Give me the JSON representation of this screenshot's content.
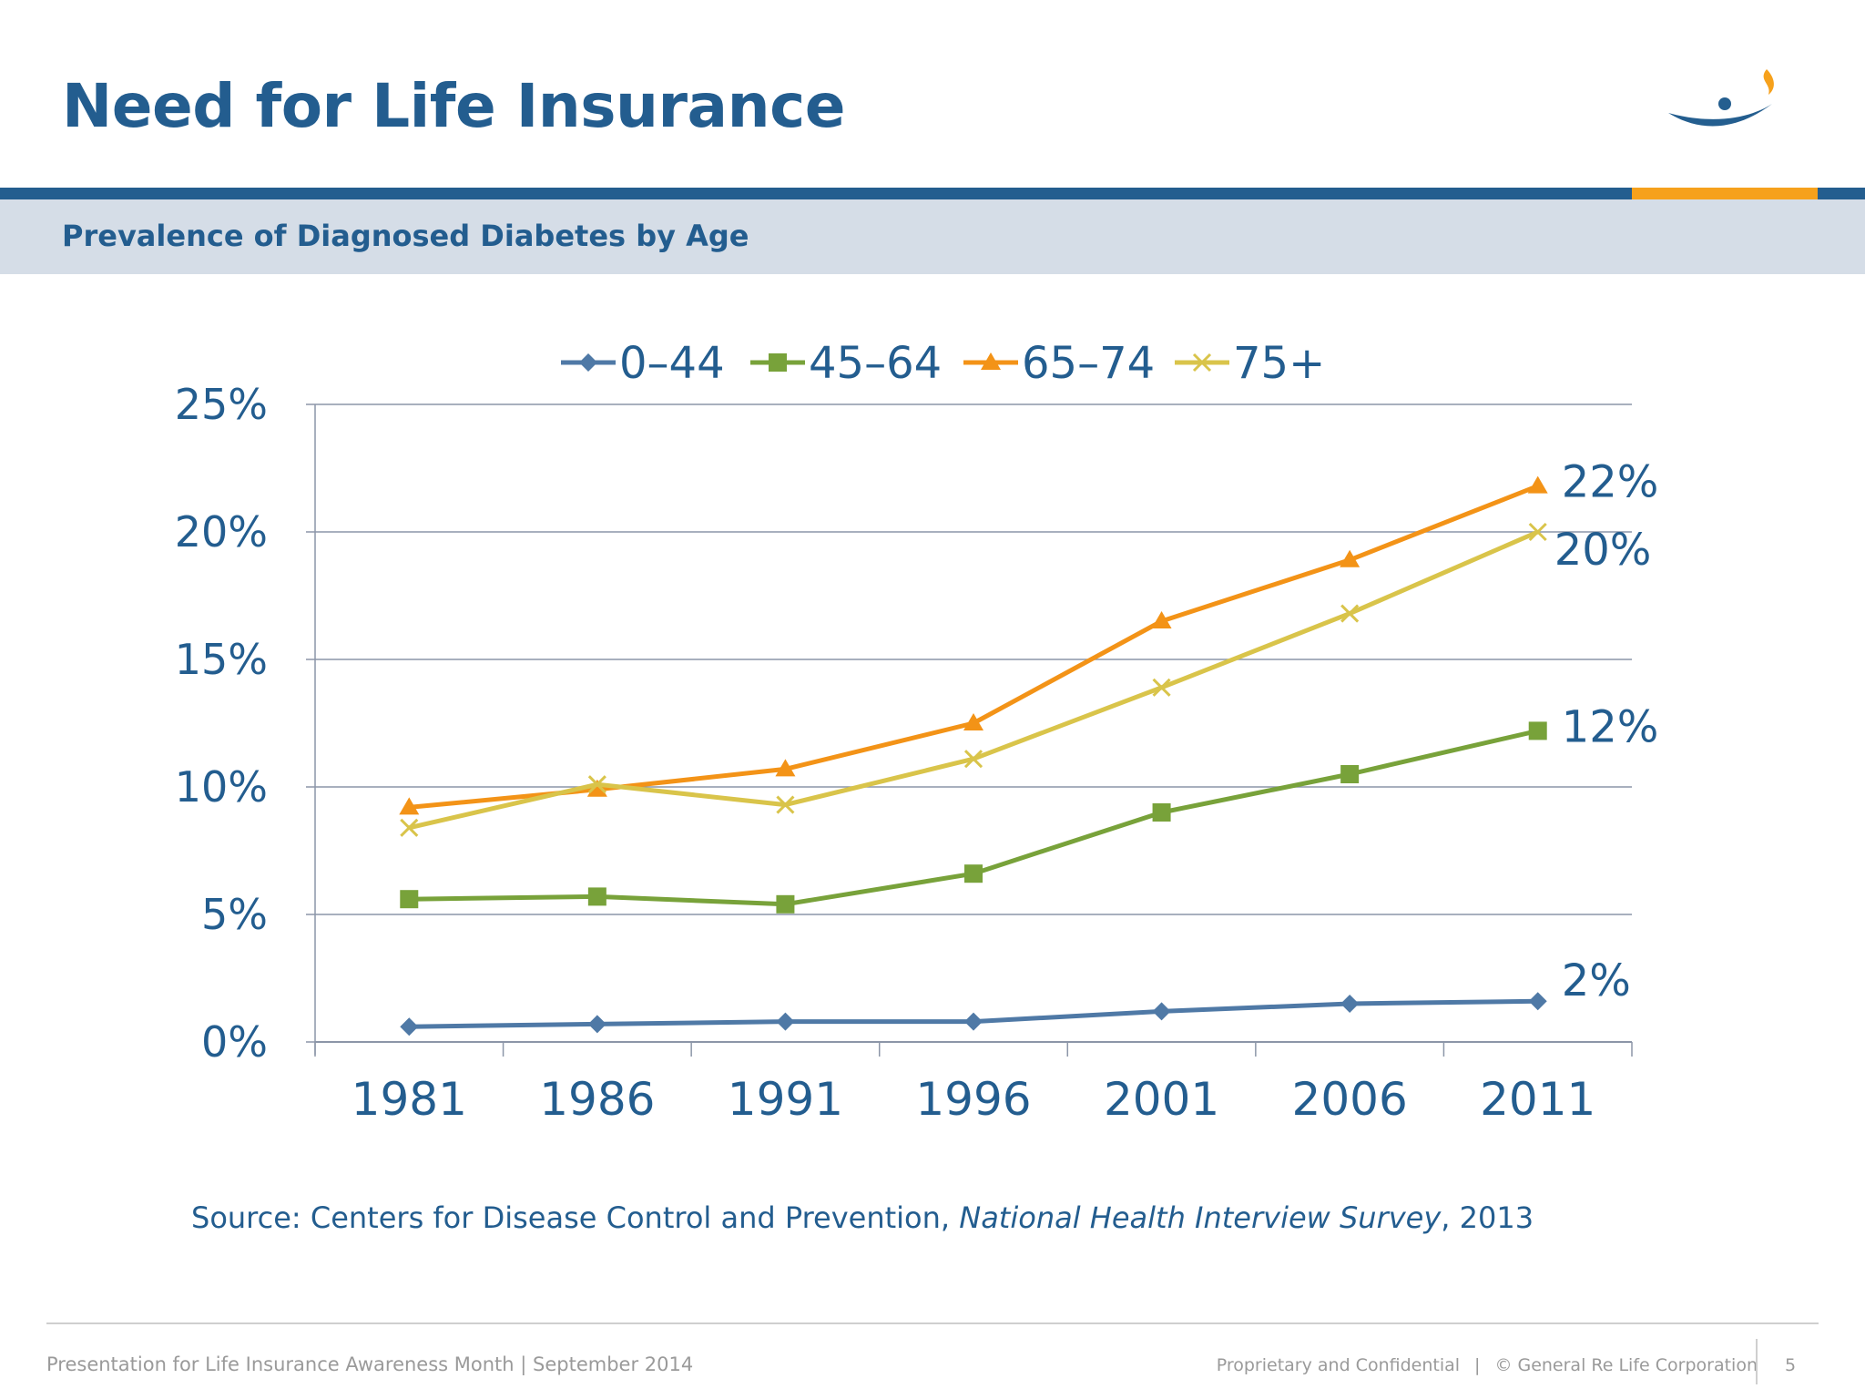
{
  "slide": {
    "title": "Need for Life Insurance",
    "subtitle": "Prevalence of Diagnosed Diabetes by Age"
  },
  "chart_data": {
    "type": "line",
    "title": "",
    "xlabel": "",
    "ylabel": "",
    "x": [
      "1981",
      "1986",
      "1991",
      "1996",
      "2001",
      "2006",
      "2011"
    ],
    "ylim": [
      0,
      25
    ],
    "y_ticks": [
      "0%",
      "5%",
      "10%",
      "15%",
      "20%",
      "25%"
    ],
    "grid": "horizontal",
    "legend": "top",
    "series": [
      {
        "name": "0–44",
        "color": "#4f79a6",
        "marker": "diamond",
        "values": [
          0.6,
          0.7,
          0.8,
          0.8,
          1.2,
          1.5,
          1.6
        ],
        "end_label": "2%"
      },
      {
        "name": "45–64",
        "color": "#78a23a",
        "marker": "square",
        "values": [
          5.6,
          5.7,
          5.4,
          6.6,
          9.0,
          10.5,
          12.2
        ],
        "end_label": "12%"
      },
      {
        "name": "65–74",
        "color": "#f39317",
        "marker": "triangle",
        "values": [
          9.2,
          9.9,
          10.7,
          12.5,
          16.5,
          18.9,
          21.8
        ],
        "end_label": "22%"
      },
      {
        "name": "75+",
        "color": "#d9c44a",
        "marker": "x",
        "values": [
          8.4,
          10.1,
          9.3,
          11.1,
          13.9,
          16.8,
          20.0
        ],
        "end_label": "20%"
      }
    ]
  },
  "source": {
    "prefix": "Source: Centers for Disease Control and Prevention, ",
    "italic": "National Health Interview Survey",
    "suffix": ", 2013"
  },
  "footer": {
    "left": "Presentation for Life Insurance Awareness Month | September 2014",
    "confidential": "Proprietary and Confidential",
    "separator": "|",
    "copyright": "© General Re Life Corporation",
    "page_number": "5"
  },
  "colors": {
    "brand_blue": "#245e8f",
    "accent_orange": "#f6a11c",
    "band": "#d5dde7"
  }
}
